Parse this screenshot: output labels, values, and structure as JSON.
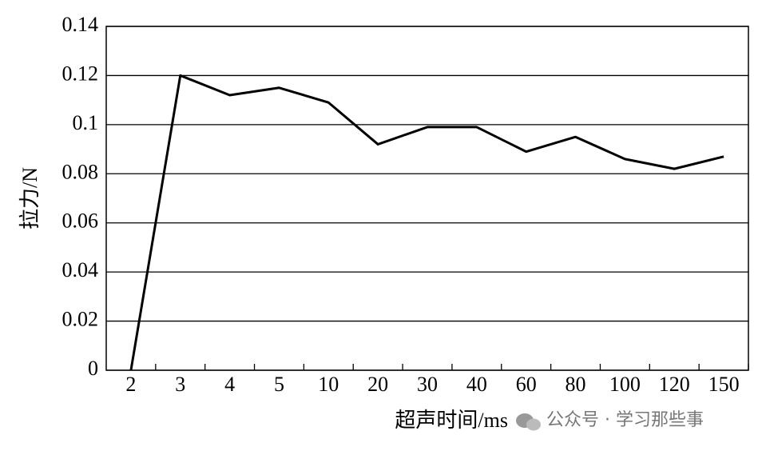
{
  "chart_data": {
    "type": "line",
    "x_label": "超声时间/ms",
    "y_label": "拉力/N",
    "watermark": "公众号 · 学习那些事",
    "categories": [
      "2",
      "3",
      "4",
      "5",
      "10",
      "20",
      "30",
      "40",
      "60",
      "80",
      "100",
      "120",
      "150"
    ],
    "values": [
      0,
      0.12,
      0.112,
      0.115,
      0.109,
      0.092,
      0.099,
      0.099,
      0.089,
      0.095,
      0.086,
      0.082,
      0.087
    ],
    "color": "#000000",
    "ylim": [
      0,
      0.14
    ],
    "yticks": [
      0,
      0.02,
      0.04,
      0.06,
      0.08,
      0.1,
      0.12,
      0.14
    ],
    "grid": true
  }
}
